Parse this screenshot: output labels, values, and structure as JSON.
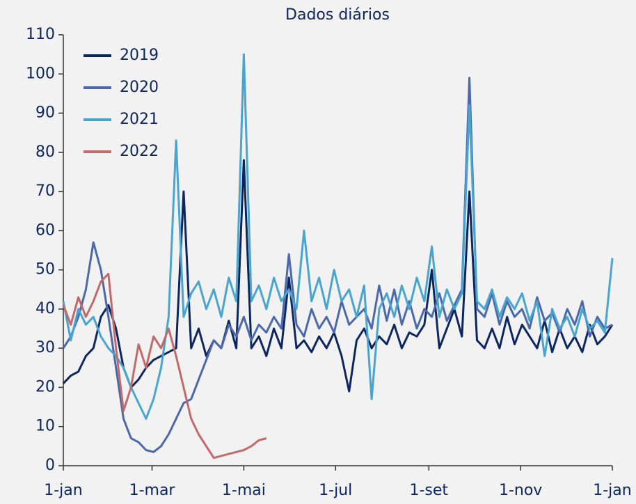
{
  "chart_data": {
    "type": "line",
    "subtitle": "Dados diários",
    "x": [
      0,
      5,
      10,
      15,
      20,
      25,
      30,
      35,
      40,
      45,
      50,
      55,
      60,
      65,
      70,
      75,
      80,
      85,
      90,
      95,
      100,
      105,
      110,
      115,
      120,
      125,
      130,
      135,
      140,
      145,
      150,
      155,
      160,
      165,
      170,
      175,
      180,
      185,
      190,
      195,
      200,
      205,
      210,
      215,
      220,
      225,
      230,
      235,
      240,
      245,
      250,
      255,
      260,
      265,
      270,
      275,
      280,
      285,
      290,
      295,
      300,
      305,
      310,
      315,
      320,
      325,
      330,
      335,
      340,
      345,
      350,
      355,
      360,
      365
    ],
    "xlim": [
      0,
      365
    ],
    "xticks": [
      {
        "value": 0,
        "label": "1-jan"
      },
      {
        "value": 59,
        "label": "1-mar"
      },
      {
        "value": 120,
        "label": "1-mai"
      },
      {
        "value": 181,
        "label": "1-jul"
      },
      {
        "value": 243,
        "label": "1-set"
      },
      {
        "value": 304,
        "label": "1-nov"
      },
      {
        "value": 365,
        "label": "1-jan"
      }
    ],
    "ylim": [
      0,
      110
    ],
    "yticks": [
      0,
      10,
      20,
      30,
      40,
      50,
      60,
      70,
      80,
      90,
      100,
      110
    ],
    "legend": "upper left",
    "series": [
      {
        "name": "2019",
        "color": "#0c2660",
        "values": [
          21,
          23,
          24,
          28,
          30,
          38,
          41,
          35,
          25,
          20,
          22,
          25,
          27,
          28,
          29,
          30,
          70,
          30,
          35,
          28,
          32,
          30,
          37,
          30,
          78,
          30,
          33,
          28,
          35,
          30,
          48,
          30,
          32,
          29,
          33,
          30,
          34,
          28,
          19,
          32,
          35,
          30,
          33,
          31,
          36,
          30,
          34,
          33,
          36,
          50,
          30,
          35,
          40,
          33,
          70,
          32,
          30,
          35,
          30,
          38,
          31,
          36,
          33,
          30,
          37,
          29,
          35,
          30,
          33,
          29,
          36,
          31,
          33,
          36
        ]
      },
      {
        "name": "2020",
        "color": "#4a68aa",
        "values": [
          30,
          33,
          38,
          45,
          57,
          50,
          38,
          25,
          12,
          7,
          6,
          4,
          3.5,
          5,
          8,
          12,
          16,
          17,
          22,
          27,
          32,
          30,
          36,
          33,
          38,
          32,
          36,
          34,
          38,
          35,
          54,
          36,
          33,
          40,
          35,
          38,
          34,
          42,
          36,
          38,
          40,
          35,
          46,
          37,
          45,
          36,
          42,
          35,
          40,
          38,
          44,
          37,
          41,
          45,
          99,
          40,
          38,
          44,
          36,
          42,
          38,
          40,
          35,
          43,
          37,
          39,
          34,
          40,
          36,
          42,
          33,
          38,
          35,
          36
        ]
      },
      {
        "name": "2021",
        "color": "#47a5cf",
        "values": [
          42,
          32,
          40,
          36,
          38,
          33,
          30,
          28,
          25,
          20,
          16,
          12,
          17,
          25,
          38,
          83,
          38,
          44,
          47,
          40,
          45,
          38,
          48,
          42,
          105,
          42,
          46,
          40,
          48,
          42,
          45,
          40,
          60,
          42,
          48,
          40,
          50,
          42,
          45,
          38,
          46,
          17,
          40,
          44,
          38,
          46,
          40,
          48,
          42,
          56,
          38,
          45,
          40,
          44,
          92,
          42,
          40,
          45,
          38,
          43,
          40,
          44,
          37,
          42,
          28,
          40,
          35,
          38,
          33,
          40,
          35,
          37,
          34,
          53
        ]
      },
      {
        "name": "2022",
        "color": "#c2696b",
        "values": [
          41,
          36,
          43,
          38,
          42,
          47,
          49,
          30,
          14,
          20,
          31,
          25,
          33,
          30,
          35,
          28,
          20,
          12,
          8,
          5,
          2,
          2.5,
          3,
          3.5,
          4,
          5,
          6.5,
          7,
          null,
          null,
          null,
          null,
          null,
          null,
          null,
          null,
          null,
          null,
          null,
          null,
          null,
          null,
          null,
          null,
          null,
          null,
          null,
          null,
          null,
          null,
          null,
          null,
          null,
          null,
          null,
          null,
          null,
          null,
          null,
          null,
          null,
          null,
          null,
          null,
          null,
          null,
          null,
          null,
          null,
          null,
          null,
          null,
          null,
          null
        ]
      }
    ]
  }
}
